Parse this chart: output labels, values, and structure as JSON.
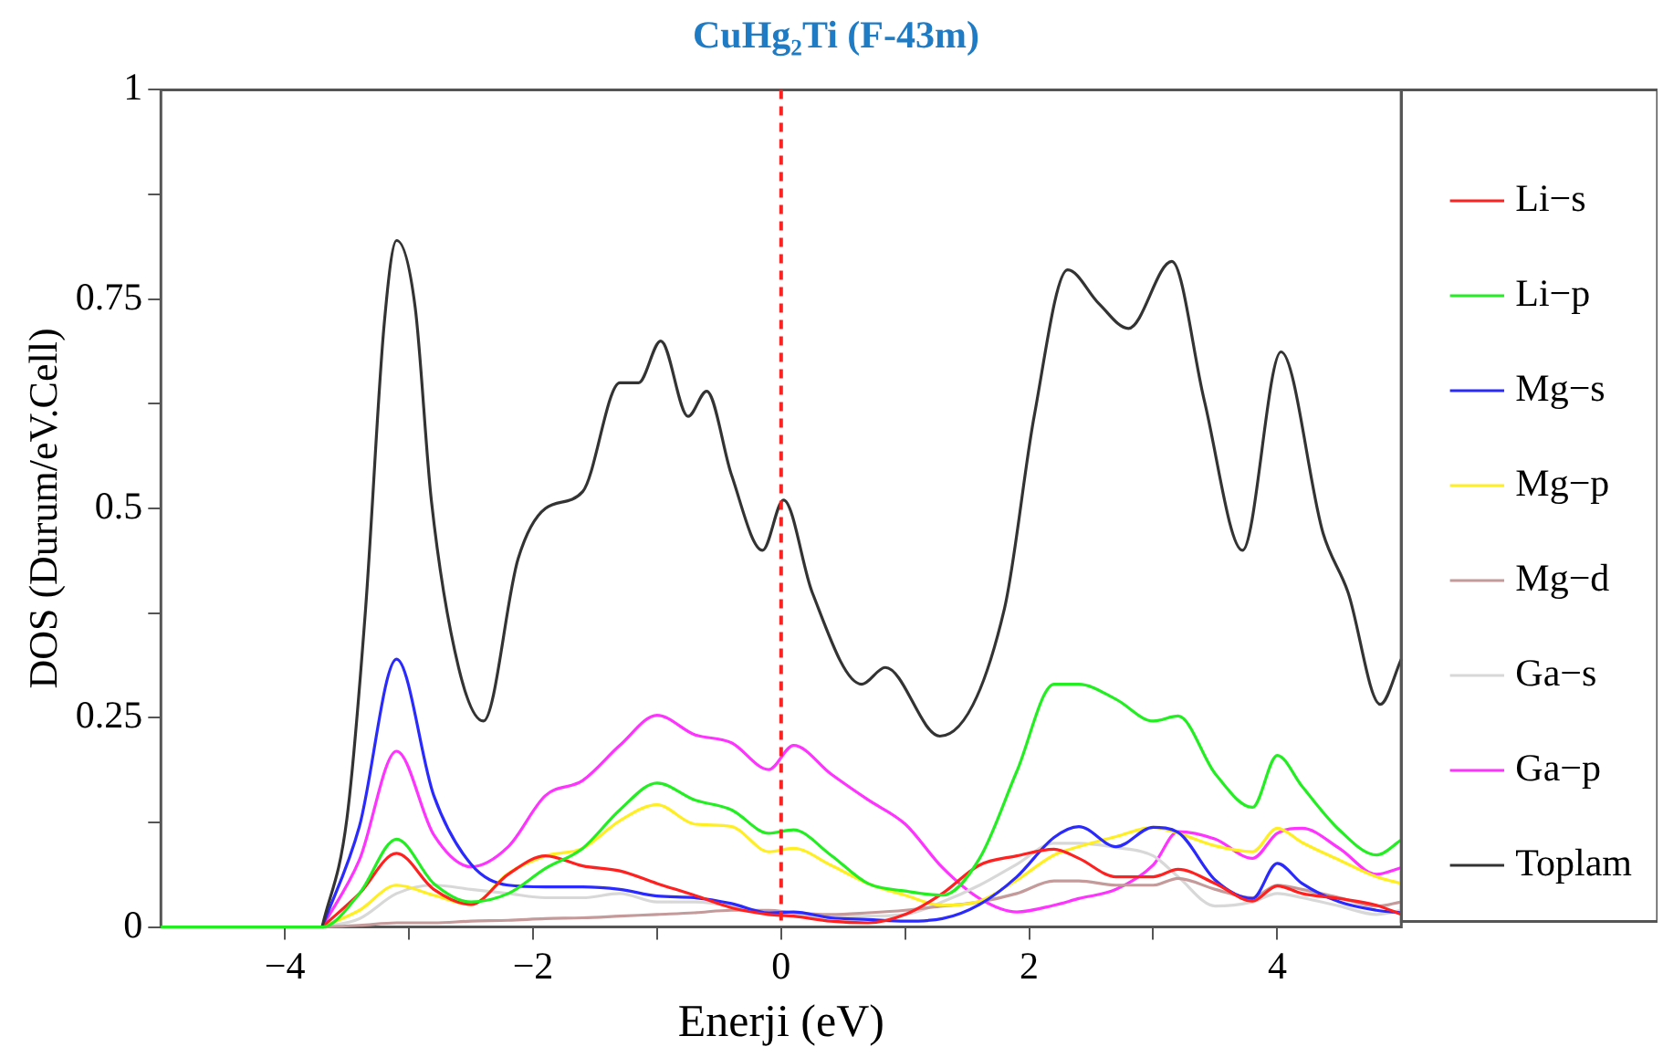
{
  "chart_data": {
    "type": "line",
    "title": "CuHg₂Ti (F-43m)",
    "xlabel": "Enerji (eV)",
    "ylabel": "DOS (Durum/eV.Cell)",
    "x": [
      -5,
      -3.7,
      -3.4,
      -3.1,
      -2.8,
      -2.5,
      -2.2,
      -1.9,
      -1.6,
      -1.3,
      -1,
      -0.7,
      -0.4,
      -0.1,
      0.1,
      0.4,
      0.7,
      1,
      1.3,
      1.6,
      1.9,
      2.2,
      2.4,
      2.7,
      3,
      3.2,
      3.5,
      3.8,
      4,
      4.2,
      4.5,
      4.8,
      5
    ],
    "series": [
      {
        "name": "Li−s",
        "color": "#ff2020",
        "values": [
          null,
          0,
          0.04,
          0.088,
          0.045,
          0.027,
          0.063,
          0.085,
          0.073,
          0.067,
          0.052,
          0.038,
          0.023,
          0.015,
          0.013,
          0.007,
          0.005,
          0.015,
          0.04,
          0.074,
          0.085,
          0.093,
          0.082,
          0.06,
          0.06,
          0.069,
          0.052,
          0.031,
          0.049,
          0.04,
          0.034,
          0.026,
          0.015
        ]
      },
      {
        "name": "Li−p",
        "color": "#22ee22",
        "values": [
          0,
          0,
          0.04,
          0.105,
          0.052,
          0.03,
          0.04,
          0.07,
          0.094,
          0.14,
          0.172,
          0.152,
          0.14,
          0.112,
          0.116,
          0.086,
          0.052,
          0.043,
          0.038,
          0.082,
          0.186,
          0.29,
          0.29,
          0.272,
          0.246,
          0.252,
          0.183,
          0.143,
          0.205,
          0.168,
          0.116,
          0.086,
          0.104
        ]
      },
      {
        "name": "Mg−s",
        "color": "#2a2aff",
        "values": [
          null,
          0,
          0.12,
          0.32,
          0.157,
          0.075,
          0.05,
          0.048,
          0.048,
          0.045,
          0.037,
          0.035,
          0.028,
          0.017,
          0.018,
          0.011,
          0.009,
          0.007,
          0.01,
          0.027,
          0.06,
          0.107,
          0.12,
          0.096,
          0.119,
          0.113,
          0.056,
          0.034,
          0.076,
          0.052,
          0.03,
          0.02,
          0.017
        ]
      },
      {
        "name": "Mg−p",
        "color": "#ffee22",
        "values": [
          null,
          0,
          0.02,
          0.05,
          0.038,
          0.027,
          0.064,
          0.085,
          0.094,
          0.127,
          0.146,
          0.123,
          0.12,
          0.09,
          0.094,
          0.074,
          0.052,
          0.038,
          0.026,
          0.031,
          0.056,
          0.086,
          0.096,
          0.108,
          0.119,
          0.112,
          0.097,
          0.09,
          0.118,
          0.101,
          0.08,
          0.06,
          0.052
        ]
      },
      {
        "name": "Mg−d",
        "color": "#c49a9a",
        "values": [
          null,
          0,
          0.002,
          0.005,
          0.005,
          0.007,
          0.008,
          0.01,
          0.011,
          0.013,
          0.015,
          0.017,
          0.02,
          0.02,
          0.017,
          0.015,
          0.017,
          0.02,
          0.025,
          0.03,
          0.04,
          0.055,
          0.055,
          0.05,
          0.05,
          0.058,
          0.045,
          0.035,
          0.05,
          0.045,
          0.035,
          0.025,
          0.03
        ]
      },
      {
        "name": "Ga−s",
        "color": "#d8d8d8",
        "values": [
          null,
          0,
          0.01,
          0.04,
          0.05,
          0.045,
          0.04,
          0.035,
          0.035,
          0.04,
          0.03,
          0.03,
          0.025,
          0.015,
          0.013,
          0.012,
          0.013,
          0.015,
          0.03,
          0.05,
          0.075,
          0.1,
          0.1,
          0.095,
          0.085,
          0.06,
          0.025,
          0.03,
          0.04,
          0.035,
          0.025,
          0.015,
          0.02
        ]
      },
      {
        "name": "Ga−p",
        "color": "#ff33ff",
        "values": [
          null,
          0,
          0.08,
          0.21,
          0.11,
          0.072,
          0.096,
          0.157,
          0.175,
          0.217,
          0.253,
          0.23,
          0.22,
          0.188,
          0.217,
          0.183,
          0.152,
          0.123,
          0.071,
          0.034,
          0.018,
          0.026,
          0.034,
          0.045,
          0.074,
          0.114,
          0.105,
          0.082,
          0.112,
          0.118,
          0.094,
          0.063,
          0.071
        ]
      },
      {
        "name": "Toplam",
        "color": "#333333",
        "x": [
          -3.7,
          -3.5,
          -3.35,
          -3.2,
          -3.1,
          -2.95,
          -2.82,
          -2.6,
          -2.4,
          -2.12,
          -1.9,
          -1.6,
          -1.3,
          -1.15,
          -0.97,
          -0.75,
          -0.6,
          -0.4,
          -0.15,
          0.02,
          0.25,
          0.65,
          0.84,
          1.28,
          1.8,
          2.04,
          2.31,
          2.56,
          2.8,
          3.15,
          3.41,
          3.72,
          4.03,
          4.37,
          4.57,
          4.83,
          5
        ],
        "values": [
          0,
          0.13,
          0.38,
          0.72,
          0.82,
          0.74,
          0.51,
          0.31,
          0.246,
          0.44,
          0.5,
          0.52,
          0.65,
          0.65,
          0.7,
          0.61,
          0.64,
          0.54,
          0.45,
          0.51,
          0.4,
          0.29,
          0.31,
          0.228,
          0.38,
          0.61,
          0.785,
          0.745,
          0.715,
          0.795,
          0.63,
          0.45,
          0.687,
          0.47,
          0.4,
          0.266,
          0.32
        ]
      }
    ],
    "xlim": [
      -5,
      5
    ],
    "xticks": [
      -4,
      {
        "value": -3,
        "label": null
      },
      -2,
      {
        "value": -1,
        "label": null
      },
      0,
      {
        "value": 1,
        "label": null
      },
      2,
      {
        "value": 3,
        "label": null
      },
      4
    ],
    "ylim": [
      0,
      1
    ],
    "yticks": [
      0,
      {
        "value": 0.125,
        "label": null
      },
      0.25,
      {
        "value": 0.375,
        "label": null
      },
      0.5,
      {
        "value": 0.625,
        "label": null
      },
      0.75,
      {
        "value": 0.875,
        "label": null
      },
      1
    ],
    "ref_lines": [
      {
        "axis": "x",
        "value": 0,
        "color": "#ff2020",
        "line_style": "dashed"
      }
    ],
    "grid": false,
    "legend": "right",
    "marker": "none",
    "line_style": "solid"
  }
}
